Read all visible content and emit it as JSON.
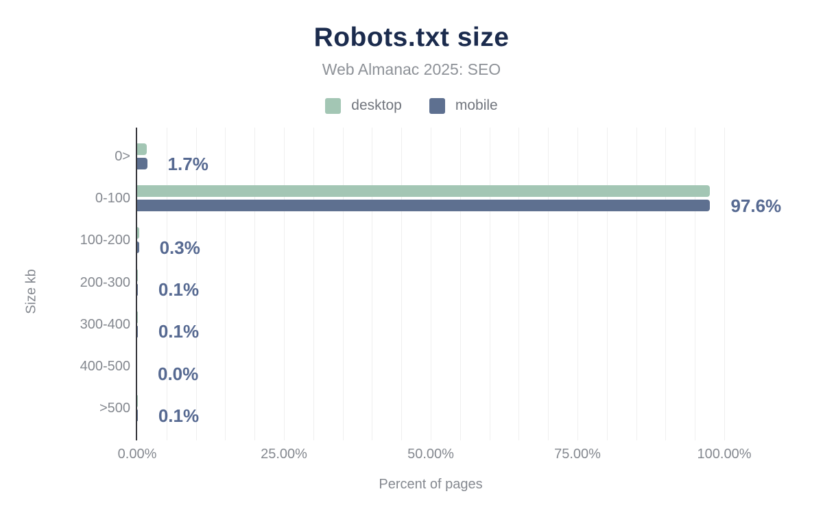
{
  "chart_data": {
    "type": "bar",
    "orientation": "horizontal",
    "title": "Robots.txt size",
    "subtitle": "Web Almanac 2025: SEO",
    "categories": [
      "0>",
      "0-100",
      "100-200",
      "200-300",
      "300-400",
      "400-500",
      ">500"
    ],
    "series": [
      {
        "name": "desktop",
        "color": "#a3c6b4",
        "values": [
          1.6,
          97.5,
          0.3,
          0.1,
          0.1,
          0.0,
          0.1
        ]
      },
      {
        "name": "mobile",
        "color": "#5e7090",
        "values": [
          1.7,
          97.6,
          0.3,
          0.1,
          0.1,
          0.0,
          0.1
        ]
      }
    ],
    "value_labels": [
      "1.7%",
      "97.6%",
      "0.3%",
      "0.1%",
      "0.1%",
      "0.0%",
      "0.1%"
    ],
    "xlabel": "Percent of pages",
    "ylabel": "Size kb",
    "x_ticks": [
      {
        "value": 0,
        "label": "0.00%"
      },
      {
        "value": 25,
        "label": "25.00%"
      },
      {
        "value": 50,
        "label": "50.00%"
      },
      {
        "value": 75,
        "label": "75.00%"
      },
      {
        "value": 100,
        "label": "100.00%"
      }
    ],
    "xlim": [
      0,
      100
    ],
    "grid": {
      "on": true,
      "minor_step_percent": 5,
      "color": "#efefef"
    },
    "legend_position": "top",
    "colors": {
      "title": "#1b2b4d",
      "subtitle": "#8d9197",
      "axis_text": "#84888f",
      "value_label": "#566991",
      "axis_line": "#38383d"
    }
  }
}
